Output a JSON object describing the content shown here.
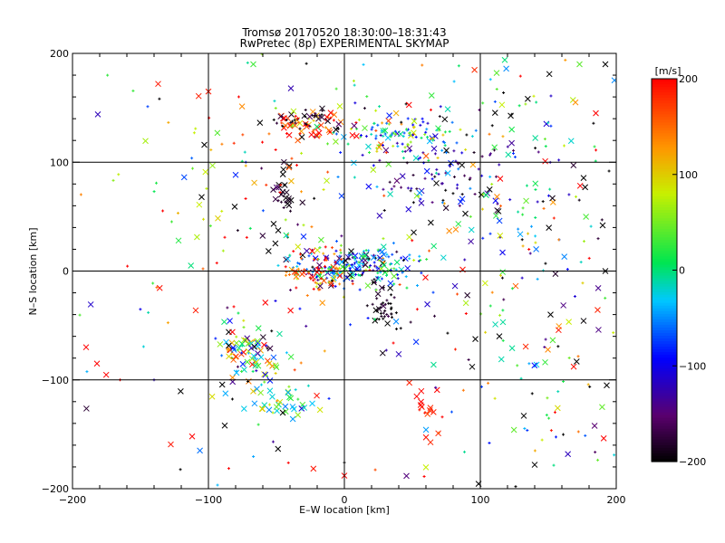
{
  "chart_data": {
    "type": "scatter",
    "title": "Tromsø 20170520 18:30:00–18:31:43",
    "subtitle": "RwPretec (8p) EXPERIMENTAL SKYMAP",
    "xlabel": "E–W location [km]",
    "ylabel": "N–S location [km]",
    "xlim": [
      -200,
      200
    ],
    "ylim": [
      -200,
      200
    ],
    "x_ticks": [
      -200,
      -100,
      0,
      100,
      200
    ],
    "y_ticks": [
      -200,
      -100,
      0,
      100,
      200
    ],
    "grid_lines": [
      -100,
      0,
      100
    ],
    "grid": true,
    "colorbar": {
      "label": "[m/s]",
      "min": -200,
      "max": 200,
      "ticks": [
        200,
        100,
        0,
        -100,
        -200
      ],
      "colormap": "rainbow (black-purple-blue-cyan-green-yellow-red)",
      "placement": "right"
    },
    "marker_types": [
      "plus",
      "cross"
    ],
    "clusters": [
      {
        "center": [
          10,
          5
        ],
        "spread": [
          22,
          10
        ],
        "count": 220,
        "v_mean": -60,
        "v_spread": 80,
        "marker": "plus"
      },
      {
        "center": [
          -15,
          0
        ],
        "spread": [
          12,
          10
        ],
        "count": 60,
        "v_mean": 160,
        "v_spread": 40,
        "marker": "plus"
      },
      {
        "center": [
          40,
          125
        ],
        "spread": [
          25,
          10
        ],
        "count": 140,
        "v_mean": -20,
        "v_spread": 90,
        "marker": "plus"
      },
      {
        "center": [
          -25,
          135
        ],
        "spread": [
          12,
          5
        ],
        "count": 50,
        "v_mean": 150,
        "v_spread": 60,
        "marker": "cross"
      },
      {
        "center": [
          -30,
          140
        ],
        "spread": [
          18,
          6
        ],
        "count": 40,
        "v_mean": -190,
        "v_spread": 15,
        "marker": "plus"
      },
      {
        "center": [
          -70,
          -80
        ],
        "spread": [
          12,
          15
        ],
        "count": 90,
        "v_mean": 20,
        "v_spread": 120,
        "marker": "cross"
      },
      {
        "center": [
          -45,
          55
        ],
        "spread": [
          5,
          20
        ],
        "count": 35,
        "v_mean": -190,
        "v_spread": 20,
        "marker": "cross"
      },
      {
        "center": [
          70,
          85
        ],
        "spread": [
          25,
          15
        ],
        "count": 60,
        "v_mean": -150,
        "v_spread": 40,
        "marker": "plus"
      },
      {
        "center": [
          30,
          -35
        ],
        "spread": [
          6,
          10
        ],
        "count": 40,
        "v_mean": -190,
        "v_spread": 15,
        "marker": "plus"
      },
      {
        "center": [
          -45,
          -120
        ],
        "spread": [
          12,
          8
        ],
        "count": 35,
        "v_mean": 10,
        "v_spread": 60,
        "marker": "cross"
      },
      {
        "center": [
          60,
          -130
        ],
        "spread": [
          8,
          12
        ],
        "count": 18,
        "v_mean": 190,
        "v_spread": 15,
        "marker": "cross"
      },
      {
        "center": [
          120,
          80
        ],
        "spread": [
          40,
          80
        ],
        "count": 140,
        "v_mean": -60,
        "v_spread": 120,
        "marker": "plus"
      },
      {
        "center": [
          150,
          -70
        ],
        "spread": [
          35,
          60
        ],
        "count": 70,
        "v_mean": 0,
        "v_spread": 140,
        "marker": "plus"
      },
      {
        "center": [
          -80,
          100
        ],
        "spread": [
          40,
          50
        ],
        "count": 50,
        "v_mean": 120,
        "v_spread": 90,
        "marker": "plus"
      },
      {
        "center": [
          0,
          0
        ],
        "spread": [
          120,
          120
        ],
        "count": 180,
        "v_mean": 0,
        "v_spread": 150,
        "marker": "plus"
      },
      {
        "center": [
          0,
          0
        ],
        "spread": [
          130,
          130
        ],
        "count": 110,
        "v_mean": -30,
        "v_spread": 150,
        "marker": "cross"
      }
    ],
    "points": [
      {
        "x": -190,
        "y": -70,
        "v": 200,
        "marker": "cross"
      },
      {
        "x": -182,
        "y": -85,
        "v": 200,
        "marker": "cross"
      },
      {
        "x": -137,
        "y": 172,
        "v": 190,
        "marker": "cross"
      },
      {
        "x": -122,
        "y": 28,
        "v": 20,
        "marker": "cross"
      },
      {
        "x": -112,
        "y": -152,
        "v": 200,
        "marker": "cross"
      },
      {
        "x": -100,
        "y": 165,
        "v": 190,
        "marker": "cross"
      },
      {
        "x": -103,
        "y": 116,
        "v": -200,
        "marker": "cross"
      },
      {
        "x": -105,
        "y": 68,
        "v": -200,
        "marker": "cross"
      },
      {
        "x": -67,
        "y": 190,
        "v": 30,
        "marker": "cross"
      },
      {
        "x": -88,
        "y": -142,
        "v": -200,
        "marker": "cross"
      },
      {
        "x": 0,
        "y": -176,
        "v": -200,
        "marker": "plus"
      },
      {
        "x": 0,
        "y": -188,
        "v": 200,
        "marker": "cross"
      },
      {
        "x": 114,
        "y": -60,
        "v": -200,
        "marker": "cross"
      },
      {
        "x": 94,
        "y": -88,
        "v": -200,
        "marker": "cross"
      },
      {
        "x": 132,
        "y": -133,
        "v": -200,
        "marker": "cross"
      },
      {
        "x": 140,
        "y": -178,
        "v": -200,
        "marker": "cross"
      },
      {
        "x": 126,
        "y": -198,
        "v": -200,
        "marker": "plus"
      },
      {
        "x": 192,
        "y": 190,
        "v": -200,
        "marker": "cross"
      },
      {
        "x": 173,
        "y": 190,
        "v": 40,
        "marker": "cross"
      },
      {
        "x": 185,
        "y": 145,
        "v": 200,
        "marker": "cross"
      },
      {
        "x": 190,
        "y": 42,
        "v": -200,
        "marker": "cross"
      },
      {
        "x": 192,
        "y": 0,
        "v": -200,
        "marker": "cross"
      },
      {
        "x": 193,
        "y": -105,
        "v": -200,
        "marker": "cross"
      },
      {
        "x": 118,
        "y": 194,
        "v": 0,
        "marker": "cross"
      },
      {
        "x": 112,
        "y": 182,
        "v": 40,
        "marker": "cross"
      },
      {
        "x": 170,
        "y": 155,
        "v": 130,
        "marker": "cross"
      },
      {
        "x": -140,
        "y": -100,
        "v": -120,
        "marker": "plus"
      },
      {
        "x": -165,
        "y": -100,
        "v": 200,
        "marker": "plus"
      }
    ]
  }
}
